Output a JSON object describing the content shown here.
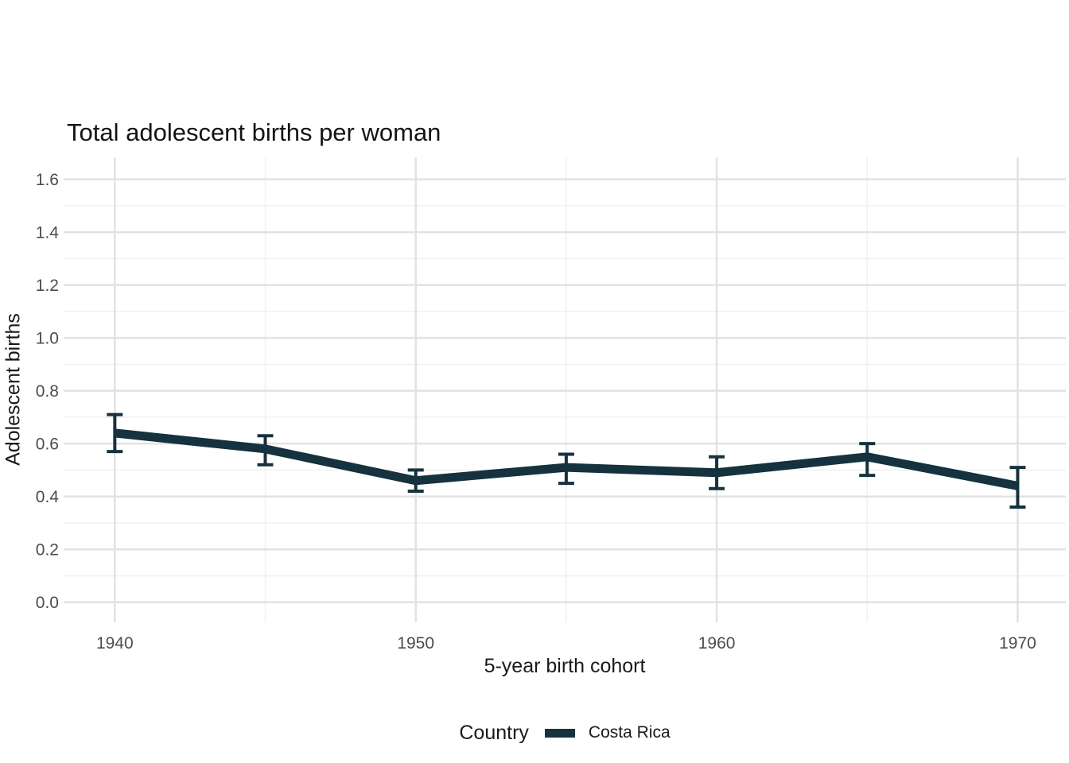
{
  "title": "Total adolescent births per woman",
  "axes": {
    "x_title": "5-year birth cohort",
    "y_title": "Adolescent births"
  },
  "legend": {
    "title": "Country",
    "items": [
      {
        "label": "Costa Rica",
        "color": "#15323E"
      }
    ],
    "position": "bottom"
  },
  "chart_data": {
    "type": "line",
    "title": "Total adolescent births per woman",
    "xlabel": "5-year birth cohort",
    "ylabel": "Adolescent births",
    "x": [
      1940,
      1945,
      1950,
      1955,
      1960,
      1965,
      1970
    ],
    "series": [
      {
        "name": "Costa Rica",
        "color": "#15323E",
        "values": [
          0.64,
          0.58,
          0.46,
          0.51,
          0.49,
          0.55,
          0.44
        ],
        "ci_lower": [
          0.57,
          0.52,
          0.42,
          0.45,
          0.43,
          0.48,
          0.36
        ],
        "ci_upper": [
          0.71,
          0.63,
          0.5,
          0.56,
          0.55,
          0.6,
          0.51
        ]
      }
    ],
    "error_bars": true,
    "xlim": [
      1938.3,
      1971.6
    ],
    "ylim": [
      -0.076,
      1.683
    ],
    "x_tick_values": [
      1940,
      1950,
      1960,
      1970
    ],
    "x_tick_labels": [
      "1940",
      "1950",
      "1960",
      "1970"
    ],
    "x_minor_ticks": [
      1945,
      1955,
      1965
    ],
    "y_tick_values": [
      0.0,
      0.2,
      0.4,
      0.6,
      0.8,
      1.0,
      1.2,
      1.4,
      1.6
    ],
    "y_tick_labels": [
      "0.0",
      "0.2",
      "0.4",
      "0.6",
      "0.8",
      "1.0",
      "1.2",
      "1.4",
      "1.6"
    ],
    "y_minor_ticks": [
      0.1,
      0.3,
      0.5,
      0.7,
      0.9,
      1.1,
      1.3,
      1.5
    ],
    "grid": true,
    "legend_position": "bottom",
    "styles": {
      "grid_major_color": "#e2e2e2",
      "grid_minor_color": "#f0f0f0",
      "grid_major_width": 2.5,
      "grid_minor_width": 1.5,
      "tick_label_color": "#4d4d4d",
      "tick_label_size": 21,
      "line_width": 11,
      "errorbar_width": 4,
      "errorbar_cap_halfwidth": 10
    }
  }
}
